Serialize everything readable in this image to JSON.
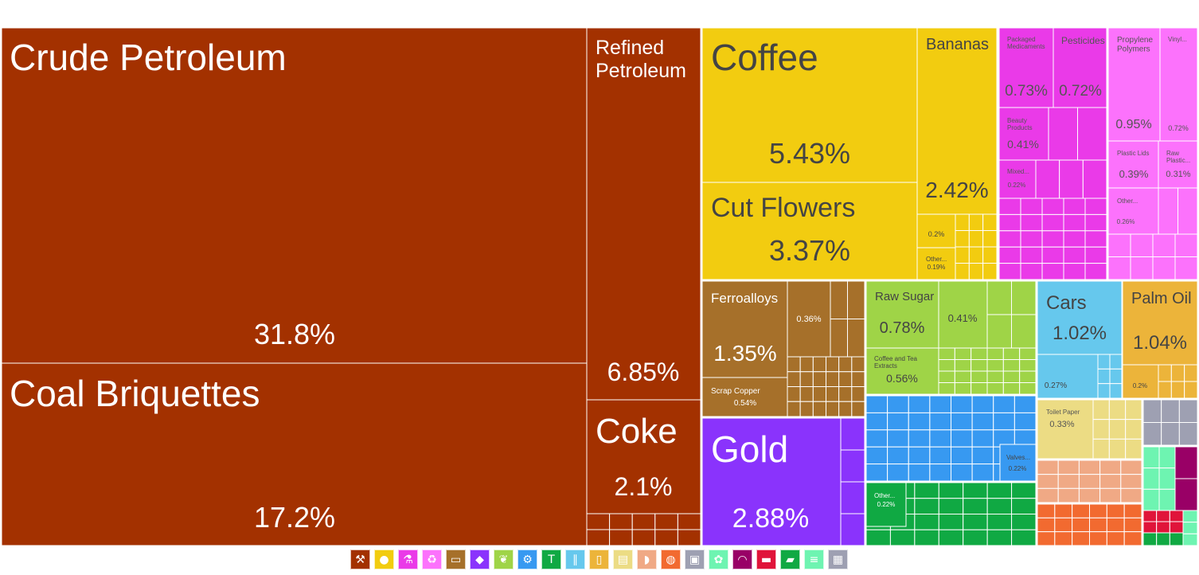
{
  "colors": {
    "mineral": "#a33100",
    "vegetable": "#f2cc10",
    "chemical": "#ea3ae8",
    "plastics": "#fc72fc",
    "stone": "#a6702a",
    "precious": "#8a33fc",
    "food": "#9fd447",
    "machines": "#3799f1",
    "textiles": "#10a943",
    "transport": "#66c8ed",
    "fats": "#ecb43a",
    "paper": "#ecdc84",
    "animal": "#f0a985",
    "metals": "#f26a30",
    "misc": "#9ea0b2",
    "footwear": "#6ef4b1",
    "arts": "#990066",
    "weapons": "#e0143a"
  },
  "chart_data": {
    "type": "treemap",
    "unit": "%",
    "items": [
      {
        "name": "Crude Petroleum",
        "value": 31.8,
        "label": "31.8%",
        "group": "mineral"
      },
      {
        "name": "Coal Briquettes",
        "value": 17.2,
        "label": "17.2%",
        "group": "mineral"
      },
      {
        "name": "Refined Petroleum",
        "value": 6.85,
        "label": "6.85%",
        "group": "mineral"
      },
      {
        "name": "Coke",
        "value": 2.1,
        "label": "2.1%",
        "group": "mineral"
      },
      {
        "name": "Coffee",
        "value": 5.43,
        "label": "5.43%",
        "group": "vegetable"
      },
      {
        "name": "Cut Flowers",
        "value": 3.37,
        "label": "3.37%",
        "group": "vegetable"
      },
      {
        "name": "Bananas",
        "value": 2.42,
        "label": "2.42%",
        "group": "vegetable"
      },
      {
        "name": "",
        "value": 0.2,
        "label": "0.2%",
        "group": "vegetable"
      },
      {
        "name": "Other...",
        "value": 0.19,
        "label": "0.19%",
        "group": "vegetable"
      },
      {
        "name": "Packaged Medicaments",
        "value": 0.73,
        "label": "0.73%",
        "group": "chemical"
      },
      {
        "name": "Pesticides",
        "value": 0.72,
        "label": "0.72%",
        "group": "chemical"
      },
      {
        "name": "Beauty Products",
        "value": 0.41,
        "label": "0.41%",
        "group": "chemical"
      },
      {
        "name": "Mixed...",
        "value": 0.22,
        "label": "0.22%",
        "group": "chemical"
      },
      {
        "name": "Propylene Polymers",
        "value": 0.95,
        "label": "0.95%",
        "group": "plastics"
      },
      {
        "name": "Vinyl...",
        "value": 0.72,
        "label": "0.72%",
        "group": "plastics"
      },
      {
        "name": "Plastic Lids",
        "value": 0.39,
        "label": "0.39%",
        "group": "plastics"
      },
      {
        "name": "Raw Plastic...",
        "value": 0.31,
        "label": "0.31%",
        "group": "plastics"
      },
      {
        "name": "Other...",
        "value": 0.26,
        "label": "0.26%",
        "group": "plastics"
      },
      {
        "name": "Ferroalloys",
        "value": 1.35,
        "label": "1.35%",
        "group": "stone"
      },
      {
        "name": "",
        "value": 0.36,
        "label": "0.36%",
        "group": "stone"
      },
      {
        "name": "Scrap Copper",
        "value": 0.54,
        "label": "0.54%",
        "group": "stone"
      },
      {
        "name": "Gold",
        "value": 2.88,
        "label": "2.88%",
        "group": "precious"
      },
      {
        "name": "Raw Sugar",
        "value": 0.78,
        "label": "0.78%",
        "group": "food"
      },
      {
        "name": "",
        "value": 0.41,
        "label": "0.41%",
        "group": "food"
      },
      {
        "name": "Coffee and Tea Extracts",
        "value": 0.56,
        "label": "0.56%",
        "group": "food"
      },
      {
        "name": "Valves...",
        "value": 0.22,
        "label": "0.22%",
        "group": "machines"
      },
      {
        "name": "Other...",
        "value": 0.22,
        "label": "0.22%",
        "group": "textiles"
      },
      {
        "name": "Cars",
        "value": 1.02,
        "label": "1.02%",
        "group": "transport"
      },
      {
        "name": "",
        "value": 0.27,
        "label": "0.27%",
        "group": "transport"
      },
      {
        "name": "Palm Oil",
        "value": 1.04,
        "label": "1.04%",
        "group": "fats"
      },
      {
        "name": "",
        "value": 0.2,
        "label": "0.2%",
        "group": "fats"
      },
      {
        "name": "Toilet Paper",
        "value": 0.33,
        "label": "0.33%",
        "group": "paper"
      }
    ]
  },
  "legend": [
    {
      "icon": "mineral-products-icon",
      "group": "mineral",
      "glyph": "⚒"
    },
    {
      "icon": "vegetable-products-icon",
      "group": "vegetable",
      "glyph": "●"
    },
    {
      "icon": "chemical-products-icon",
      "group": "chemical",
      "glyph": "⚗"
    },
    {
      "icon": "plastics-rubbers-icon",
      "group": "plastics",
      "glyph": "♻"
    },
    {
      "icon": "animal-hides-icon",
      "group": "stone",
      "glyph": "▭"
    },
    {
      "icon": "precious-metals-icon",
      "group": "precious",
      "glyph": "◆"
    },
    {
      "icon": "foodstuffs-icon",
      "group": "food",
      "glyph": "❦"
    },
    {
      "icon": "machines-icon",
      "group": "machines",
      "glyph": "⚙"
    },
    {
      "icon": "textiles-icon",
      "group": "textiles",
      "glyph": "T"
    },
    {
      "icon": "transportation-icon",
      "group": "transport",
      "glyph": "∥"
    },
    {
      "icon": "animal-vegetable-fats-icon",
      "group": "fats",
      "glyph": "▯"
    },
    {
      "icon": "paper-goods-icon",
      "group": "paper",
      "glyph": "▤"
    },
    {
      "icon": "animal-products-icon",
      "group": "animal",
      "glyph": "◗"
    },
    {
      "icon": "metals-icon",
      "group": "metals",
      "glyph": "◍"
    },
    {
      "icon": "miscellaneous-icon",
      "group": "misc",
      "glyph": "▣"
    },
    {
      "icon": "footwear-headwear-icon",
      "group": "footwear",
      "glyph": "✿"
    },
    {
      "icon": "instruments-icon",
      "group": "arts",
      "glyph": "◠"
    },
    {
      "icon": "weapons-icon",
      "group": "weapons",
      "glyph": "▬"
    },
    {
      "icon": "miscellaneous-manufactures-icon",
      "group": "textiles",
      "glyph": "▰"
    },
    {
      "icon": "stone-glass-icon",
      "group": "footwear",
      "glyph": "≡"
    },
    {
      "icon": "arts-antiques-icon",
      "group": "misc",
      "glyph": "▦"
    }
  ]
}
